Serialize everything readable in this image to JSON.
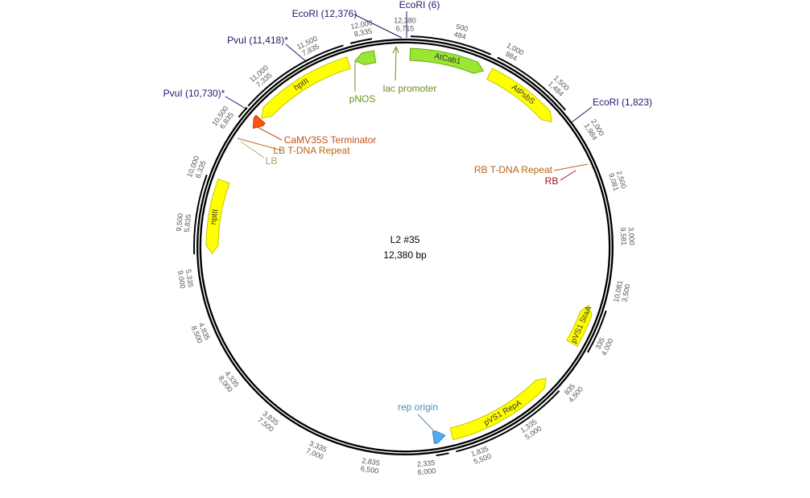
{
  "title": "L2 #35",
  "subtitle": "12,380 bp",
  "ticks": [
    {
      "outer": "12,380",
      "inner": "6,715"
    },
    {
      "outer": "500",
      "inner": "484"
    },
    {
      "outer": "1,000",
      "inner": "984"
    },
    {
      "outer": "1,500",
      "inner": "1,484"
    },
    {
      "outer": "2,000",
      "inner": "1,984"
    },
    {
      "outer": "2,500",
      "inner": "9,081"
    },
    {
      "outer": "3,000",
      "inner": "9,581"
    },
    {
      "outer": "3,500",
      "inner": "10,081"
    },
    {
      "outer": "4,000",
      "inner": "335"
    },
    {
      "outer": "4,500",
      "inner": "835"
    },
    {
      "outer": "5,000",
      "inner": "1,335"
    },
    {
      "outer": "5,500",
      "inner": "1,835"
    },
    {
      "outer": "6,000",
      "inner": "2,335"
    },
    {
      "outer": "6,500",
      "inner": "2,835"
    },
    {
      "outer": "7,000",
      "inner": "3,335"
    },
    {
      "outer": "7,500",
      "inner": "3,835"
    },
    {
      "outer": "8,000",
      "inner": "4,335"
    },
    {
      "outer": "8,500",
      "inner": "4,835"
    },
    {
      "outer": "9,000",
      "inner": "5,335"
    },
    {
      "outer": "9,500",
      "inner": "5,835"
    },
    {
      "outer": "10,000",
      "inner": "6,335"
    },
    {
      "outer": "10,500",
      "inner": "6,835"
    },
    {
      "outer": "11,000",
      "inner": "7,335"
    },
    {
      "outer": "11,500",
      "inner": "7,835"
    },
    {
      "outer": "12,000",
      "inner": "8,335"
    }
  ],
  "features": [
    {
      "label": "AtCab1"
    },
    {
      "label": "AtPsbS"
    },
    {
      "label": "pVS1 StaA"
    },
    {
      "label": "pVS1 RepA"
    },
    {
      "label": "rep origin"
    },
    {
      "label": "nptII"
    },
    {
      "label": "CaMV35S Terminator"
    },
    {
      "label": "hptII"
    },
    {
      "label": "pNOS"
    }
  ],
  "sites": [
    {
      "label": "EcoRI (12,376)"
    },
    {
      "label": "EcoRI (6)"
    },
    {
      "label": "PvuI (11,418)*"
    },
    {
      "label": "PvuI (10,730)*"
    },
    {
      "label": "EcoRI (1,823)"
    }
  ],
  "annotations": [
    {
      "label": "lac promoter"
    },
    {
      "label": "LB T-DNA Repeat"
    },
    {
      "label": "LB"
    },
    {
      "label": "RB T-DNA Repeat"
    },
    {
      "label": "RB"
    }
  ]
}
